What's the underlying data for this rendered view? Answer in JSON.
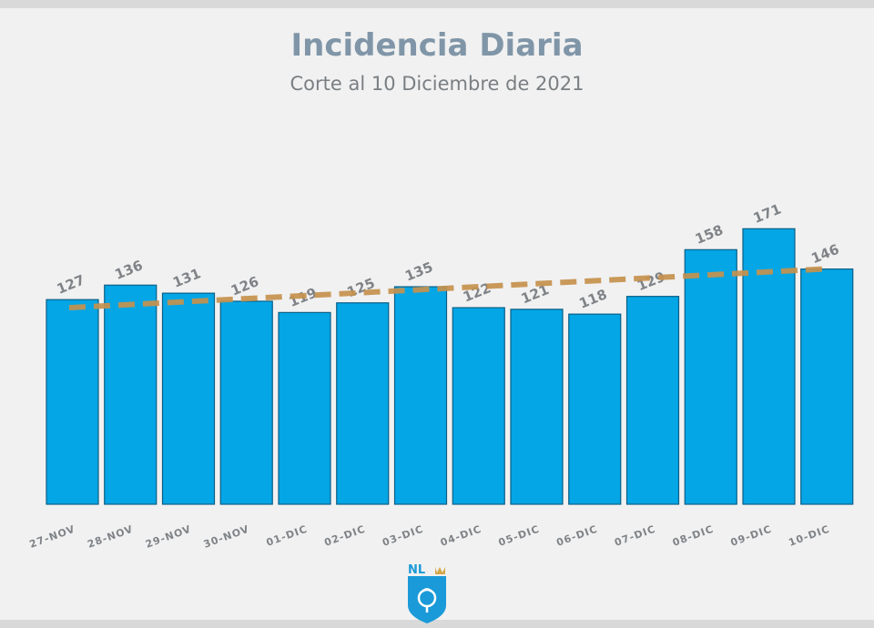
{
  "chart_data": {
    "type": "bar",
    "title": "Incidencia Diaria",
    "subtitle": "Corte al 10 Diciembre de 2021",
    "categories": [
      "27-NOV",
      "28-NOV",
      "29-NOV",
      "30-NOV",
      "01-DIC",
      "02-DIC",
      "03-DIC",
      "04-DIC",
      "05-DIC",
      "06-DIC",
      "07-DIC",
      "08-DIC",
      "09-DIC",
      "10-DIC"
    ],
    "values": [
      127,
      136,
      131,
      126,
      119,
      125,
      135,
      122,
      121,
      118,
      129,
      158,
      171,
      146
    ],
    "trendline": {
      "start": 122,
      "end": 146
    },
    "xlabel": "",
    "ylabel": "",
    "ylim": [
      0,
      180
    ],
    "grid": false,
    "bar_color": "#04a6e6",
    "trend_color": "#c5914d"
  },
  "logo": {
    "text": "NL",
    "color": "#1a9ad8"
  }
}
